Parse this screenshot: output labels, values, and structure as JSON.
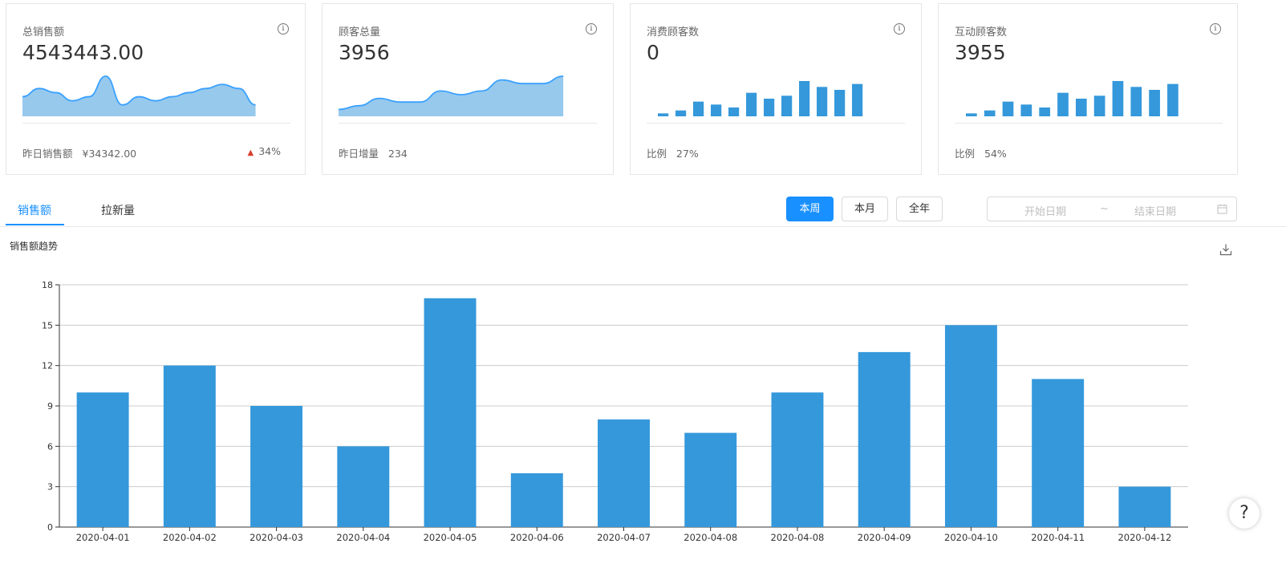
{
  "cards": [
    {
      "title": "总销售额",
      "value": "4543443.00",
      "foot_label": "昨日销售额",
      "foot_value": "¥34342.00",
      "trend": "34%",
      "spark": {
        "type": "area",
        "values": [
          4,
          6,
          5,
          3,
          4,
          9,
          2,
          4,
          3,
          4,
          5,
          6,
          7,
          6,
          2
        ]
      }
    },
    {
      "title": "顾客总量",
      "value": "3956",
      "foot_label": "昨日增量",
      "foot_value": "234",
      "spark": {
        "type": "area",
        "values": [
          1,
          2,
          4,
          3,
          3,
          6,
          5,
          6,
          9,
          8,
          8,
          10
        ]
      }
    },
    {
      "title": "消费顾客数",
      "value": "0",
      "foot_label": "比例",
      "foot_value": "27%",
      "spark": {
        "type": "bar",
        "values": [
          1,
          2,
          5,
          4,
          3,
          8,
          6,
          7,
          12,
          10,
          9,
          11
        ]
      }
    },
    {
      "title": "互动顾客数",
      "value": "3955",
      "foot_label": "比例",
      "foot_value": "54%",
      "spark": {
        "type": "bar",
        "values": [
          1,
          2,
          5,
          4,
          3,
          8,
          6,
          7,
          12,
          10,
          9,
          11
        ]
      }
    }
  ],
  "icons": {
    "info": "info-icon",
    "trend_up": "arrow-up-icon",
    "download": "download-icon",
    "calendar": "calendar-icon",
    "help": "help-icon"
  },
  "tabs": [
    {
      "label": "销售额",
      "active": true
    },
    {
      "label": "拉新量",
      "active": false
    }
  ],
  "period_buttons": [
    {
      "label": "本周",
      "active": true
    },
    {
      "label": "本月",
      "active": false
    },
    {
      "label": "全年",
      "active": false
    }
  ],
  "date_range": {
    "start_placeholder": "开始日期",
    "separator": "~",
    "end_placeholder": "结束日期"
  },
  "help_symbol": "?",
  "colors": {
    "accent": "#1890ff",
    "bar": "#3498db",
    "spark_line": "#3aa1ff",
    "spark_fill": "#97c9ed",
    "trend_up": "#d93f2c"
  },
  "chart_data": {
    "type": "bar",
    "title": "销售额趋势",
    "categories": [
      "2020-04-01",
      "2020-04-02",
      "2020-04-03",
      "2020-04-04",
      "2020-04-05",
      "2020-04-06",
      "2020-04-07",
      "2020-04-08",
      "2020-04-08",
      "2020-04-09",
      "2020-04-10",
      "2020-04-11",
      "2020-04-12"
    ],
    "values": [
      10,
      12,
      9,
      6,
      17,
      4,
      8,
      7,
      10,
      13,
      15,
      11,
      3
    ],
    "ylim": [
      0,
      18
    ],
    "yticks": [
      0,
      3,
      6,
      9,
      12,
      15,
      18
    ],
    "grid": true
  }
}
